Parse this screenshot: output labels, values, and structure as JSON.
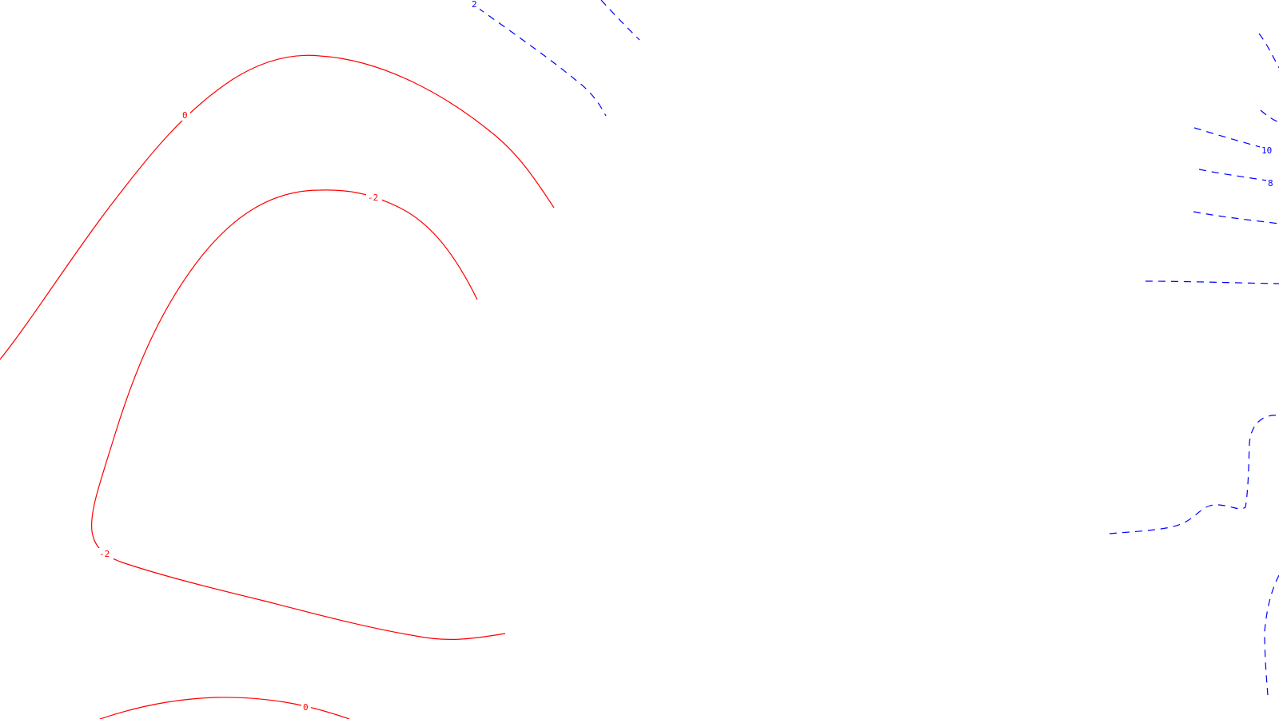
{
  "colors": {
    "background": "#ffffff",
    "positive_contour": "#ff0000",
    "negative_contour": "#0000ff"
  },
  "contours": {
    "line_styles": {
      "red": "solid",
      "blue": "dashed"
    },
    "labels": {
      "red_top": "0",
      "red_upper": "-2",
      "red_lower": "-2",
      "red_bottom": "0",
      "blue_top": "2",
      "blue_right_a": "10",
      "blue_right_b": "8"
    }
  }
}
